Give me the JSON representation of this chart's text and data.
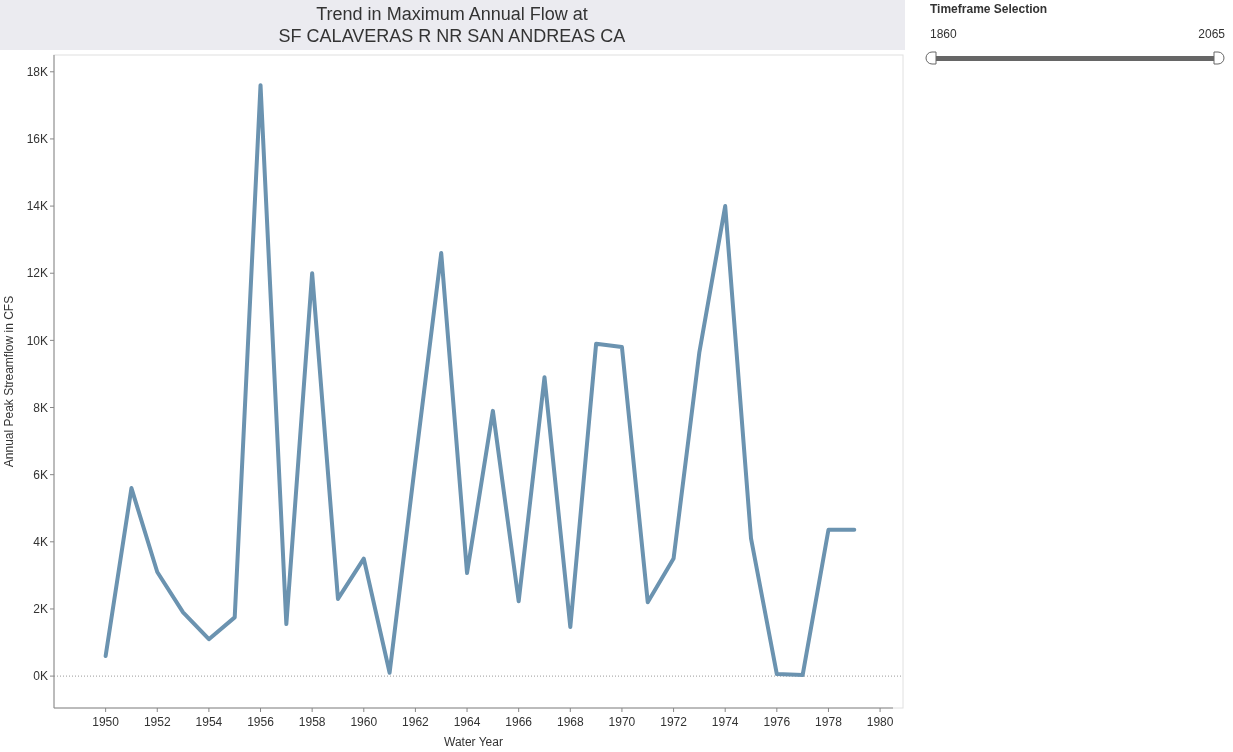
{
  "chart_data": {
    "type": "line",
    "title": "Trend in Maximum Annual Flow at\nSF CALAVERAS R NR SAN ANDREAS CA",
    "xlabel": "Water Year",
    "ylabel": "Annual Peak Streamflow in CFS",
    "x": [
      1950,
      1951,
      1952,
      1953,
      1954,
      1955,
      1956,
      1957,
      1958,
      1959,
      1960,
      1961,
      1962,
      1963,
      1964,
      1965,
      1966,
      1967,
      1968,
      1969,
      1970,
      1971,
      1972,
      1973,
      1974,
      1975,
      1976,
      1977,
      1978,
      1979
    ],
    "series": [
      {
        "color": "#6b93b0",
        "values": [
          600,
          5600,
          3100,
          1900,
          1100,
          1750,
          17600,
          1550,
          12000,
          2300,
          3500,
          100,
          6400,
          12600,
          3070,
          7900,
          2230,
          8900,
          1460,
          9900,
          9800,
          2200,
          3500,
          9650,
          14000,
          4100,
          60,
          30,
          4360,
          4360
        ]
      }
    ],
    "xlim": [
      1948,
      1980.5
    ],
    "xticks": [
      1950,
      1952,
      1954,
      1956,
      1958,
      1960,
      1962,
      1964,
      1966,
      1968,
      1970,
      1972,
      1974,
      1976,
      1978,
      1980
    ],
    "ylim": [
      -950,
      18500
    ],
    "yticks": [
      {
        "value": 0,
        "label": "0K"
      },
      {
        "value": 2000,
        "label": "2K"
      },
      {
        "value": 4000,
        "label": "4K"
      },
      {
        "value": 6000,
        "label": "6K"
      },
      {
        "value": 8000,
        "label": "8K"
      },
      {
        "value": 10000,
        "label": "10K"
      },
      {
        "value": 12000,
        "label": "12K"
      },
      {
        "value": 14000,
        "label": "14K"
      },
      {
        "value": 16000,
        "label": "16K"
      },
      {
        "value": 18000,
        "label": "18K"
      }
    ],
    "ref_lines": [
      {
        "axis": "y",
        "value": 0,
        "line_style": "dotted",
        "color": "#999999"
      }
    ],
    "annotations": [
      "Timeframe Selection",
      "1860",
      "2065"
    ],
    "grid": false,
    "marker": "none",
    "line_style": "solid"
  }
}
